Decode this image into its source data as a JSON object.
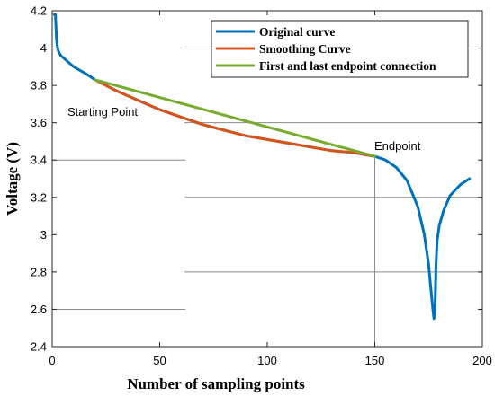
{
  "chart_data": {
    "type": "line",
    "xlabel": "Number of sampling points",
    "ylabel": "Voltage (V)",
    "xlim": [
      0,
      200
    ],
    "ylim": [
      2.4,
      4.2
    ],
    "x_ticks": [
      "0",
      "50",
      "100",
      "150",
      "200"
    ],
    "y_ticks": [
      "2.4",
      "2.6",
      "2.8",
      "3",
      "3.2",
      "3.4",
      "3.6",
      "3.8",
      "4",
      "4.2"
    ],
    "legend_position": "top-right",
    "annotations": [
      {
        "text": "Starting Point",
        "x": 7,
        "y": 3.59
      },
      {
        "text": "Endpoint",
        "x": 150,
        "y": 3.46
      }
    ],
    "series": [
      {
        "name": "Original curve",
        "color": "#0072BD",
        "x": [
          1,
          1.5,
          2,
          2.5,
          3,
          4,
          6,
          8,
          10,
          13,
          16,
          20,
          30,
          40,
          50,
          60,
          70,
          80,
          90,
          100,
          110,
          120,
          130,
          140,
          150,
          155,
          160,
          165,
          170,
          173,
          175,
          176,
          177,
          177.5,
          178,
          178.5,
          179,
          180,
          182,
          185,
          190,
          194
        ],
        "y": [
          4.18,
          4.18,
          4.05,
          4.0,
          3.98,
          3.96,
          3.94,
          3.92,
          3.9,
          3.88,
          3.86,
          3.83,
          3.77,
          3.72,
          3.67,
          3.63,
          3.59,
          3.56,
          3.53,
          3.51,
          3.49,
          3.47,
          3.45,
          3.44,
          3.42,
          3.4,
          3.36,
          3.29,
          3.15,
          3.0,
          2.84,
          2.72,
          2.6,
          2.55,
          2.6,
          2.85,
          2.97,
          3.05,
          3.13,
          3.21,
          3.27,
          3.3
        ]
      },
      {
        "name": "Smoothing Curve",
        "color": "#D95319",
        "x": [
          20,
          30,
          40,
          50,
          60,
          70,
          80,
          90,
          100,
          110,
          120,
          130,
          140,
          150
        ],
        "y": [
          3.83,
          3.77,
          3.72,
          3.67,
          3.63,
          3.59,
          3.56,
          3.53,
          3.51,
          3.49,
          3.47,
          3.45,
          3.44,
          3.42
        ]
      },
      {
        "name": "First and last endpoint connection",
        "color": "#77AC30",
        "x": [
          20,
          150
        ],
        "y": [
          3.83,
          3.42
        ]
      }
    ]
  }
}
